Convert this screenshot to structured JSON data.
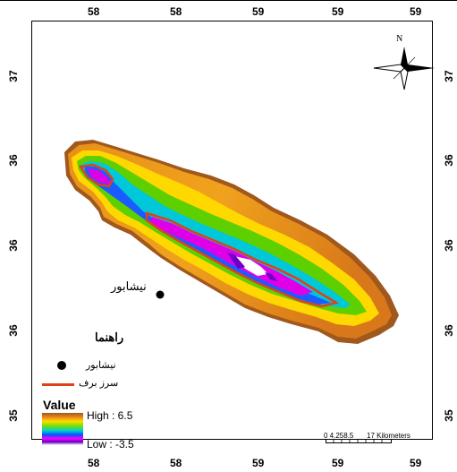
{
  "map": {
    "top_ticks": [
      "58",
      "58",
      "59",
      "59",
      "59"
    ],
    "bottom_ticks": [
      "58",
      "58",
      "59",
      "59",
      "59"
    ],
    "left_ticks": [
      "37",
      "36",
      "36",
      "36",
      "35"
    ],
    "right_ticks": [
      "37",
      "36",
      "36",
      "36",
      "35"
    ],
    "north_label": "N",
    "city_label": "نیشابور"
  },
  "legend": {
    "title": "راهنما",
    "city_label": "نیشابور",
    "line_label": "سرز برف",
    "line_color": "#e0401a",
    "value_title": "Value",
    "high_label": "High : 6.5",
    "low_label": "Low : -3.5"
  },
  "scale": {
    "numbers": "0 4.258.5",
    "end_label": "17 Kilometers"
  }
}
